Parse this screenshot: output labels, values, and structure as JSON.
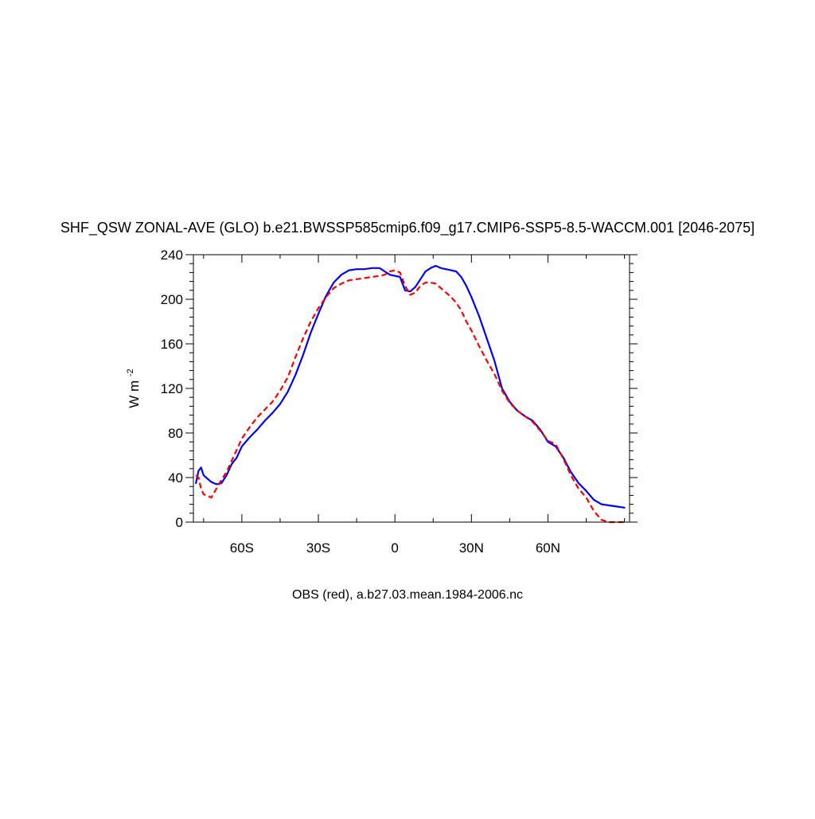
{
  "chart_data": {
    "type": "line",
    "title": "SHF_QSW ZONAL-AVE (GLO) b.e21.BWSSP585cmip6.f09_g17.CMIP6-SSP5-8.5-WACCM.001 [2046-2075]",
    "xlabel": "",
    "ylabel": "W m",
    "ylabel_superscript": "-2",
    "caption": "OBS (red), a.b27.03.mean.1984-2006.nc",
    "xlim": [
      -79,
      92
    ],
    "ylim": [
      0,
      240
    ],
    "x_ticks": [
      {
        "value": -60,
        "label": "60S"
      },
      {
        "value": -30,
        "label": "30S"
      },
      {
        "value": 0,
        "label": "0"
      },
      {
        "value": 30,
        "label": "30N"
      },
      {
        "value": 60,
        "label": "60N"
      }
    ],
    "y_ticks": [
      {
        "value": 0,
        "label": "0"
      },
      {
        "value": 40,
        "label": "40"
      },
      {
        "value": 80,
        "label": "80"
      },
      {
        "value": 120,
        "label": "120"
      },
      {
        "value": 160,
        "label": "160"
      },
      {
        "value": 200,
        "label": "200"
      },
      {
        "value": 240,
        "label": "240"
      }
    ],
    "grid": false,
    "series": [
      {
        "color": "#0000ff",
        "dash": "solid",
        "x": [
          -78,
          -77,
          -76,
          -75,
          -74,
          -72,
          -70,
          -68,
          -66,
          -64,
          -62,
          -60,
          -57,
          -54,
          -51,
          -48,
          -45,
          -42,
          -39,
          -36,
          -33,
          -30,
          -27,
          -24,
          -21,
          -18,
          -15,
          -12,
          -9,
          -6,
          -4,
          -2,
          0,
          2,
          4,
          6,
          8,
          10,
          12,
          14,
          16,
          18,
          20,
          22,
          24,
          26,
          28,
          30,
          33,
          36,
          39,
          42,
          45,
          48,
          51,
          54,
          57,
          60,
          63,
          66,
          69,
          72,
          75,
          78,
          81,
          84,
          87,
          90
        ],
        "y": [
          35,
          46,
          49,
          42,
          40,
          36,
          34,
          35,
          42,
          52,
          58,
          68,
          76,
          83,
          91,
          98,
          106,
          117,
          132,
          150,
          170,
          187,
          203,
          215,
          222,
          226,
          227,
          227,
          228,
          228,
          225,
          222,
          221,
          220,
          208,
          207,
          211,
          218,
          225,
          228,
          230,
          228,
          227,
          226,
          225,
          220,
          212,
          202,
          185,
          165,
          145,
          120,
          108,
          100,
          95,
          91,
          83,
          72,
          68,
          58,
          45,
          35,
          28,
          20,
          16,
          15,
          14,
          13
        ]
      },
      {
        "color": "#ff0000",
        "dash": "dashed",
        "x": [
          -78,
          -77,
          -76,
          -75,
          -74,
          -72,
          -70,
          -68,
          -66,
          -64,
          -62,
          -60,
          -57,
          -54,
          -51,
          -48,
          -45,
          -42,
          -39,
          -36,
          -33,
          -30,
          -27,
          -24,
          -21,
          -18,
          -15,
          -12,
          -9,
          -6,
          -4,
          -2,
          0,
          2,
          4,
          6,
          8,
          10,
          12,
          14,
          16,
          18,
          20,
          22,
          24,
          26,
          28,
          30,
          33,
          36,
          39,
          42,
          45,
          48,
          51,
          54,
          57,
          60,
          63,
          66,
          69,
          72,
          75,
          78,
          81,
          84,
          87,
          90
        ],
        "y": [
          42,
          40,
          30,
          25,
          24,
          22,
          30,
          38,
          45,
          55,
          65,
          75,
          85,
          94,
          101,
          108,
          118,
          130,
          148,
          165,
          180,
          192,
          202,
          210,
          214,
          217,
          218,
          219,
          220,
          221,
          222,
          225,
          226,
          224,
          212,
          204,
          206,
          212,
          215,
          215,
          214,
          210,
          206,
          202,
          197,
          190,
          180,
          172,
          158,
          145,
          133,
          118,
          107,
          100,
          95,
          90,
          82,
          73,
          70,
          57,
          42,
          30,
          22,
          10,
          2,
          0,
          0,
          0
        ]
      }
    ]
  }
}
